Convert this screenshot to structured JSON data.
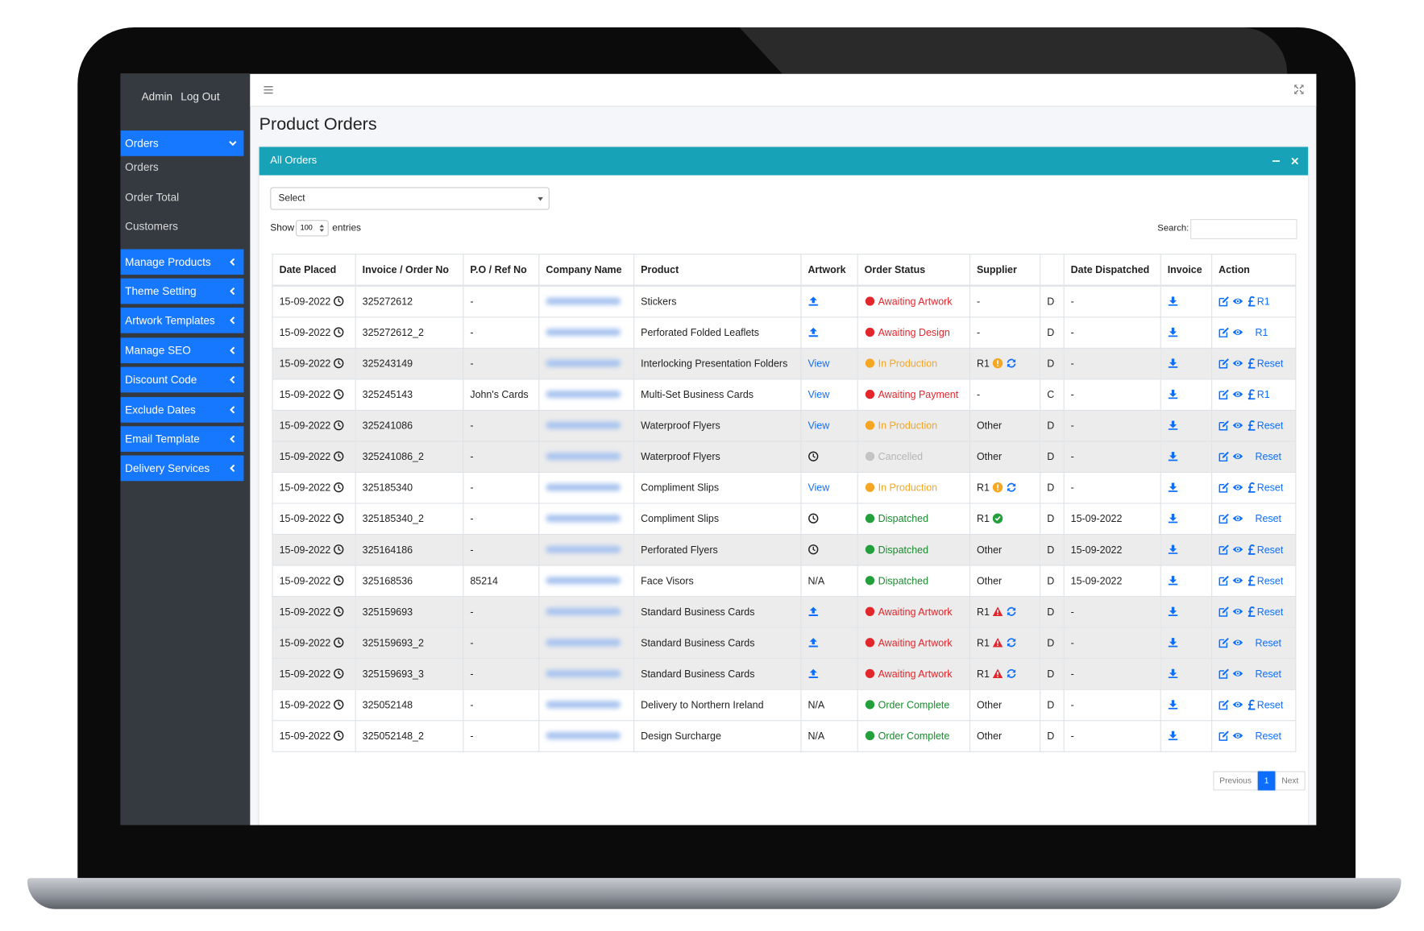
{
  "header": {
    "user": "Admin",
    "logout": "Log Out",
    "title": "Product Orders"
  },
  "sidebar": [
    {
      "label": "Orders",
      "expanded": true,
      "children": [
        "Orders",
        "Order Total",
        "Customers"
      ]
    },
    {
      "label": "Manage Products"
    },
    {
      "label": "Theme Setting"
    },
    {
      "label": "Artwork Templates"
    },
    {
      "label": "Manage SEO"
    },
    {
      "label": "Discount Code"
    },
    {
      "label": "Exclude Dates"
    },
    {
      "label": "Email Template"
    },
    {
      "label": "Delivery Services"
    }
  ],
  "panel": {
    "title": "All Orders",
    "select": "Select",
    "show": "Show",
    "entries_value": "100",
    "entries": "entries",
    "search": "Search:"
  },
  "table": {
    "columns": [
      "Date Placed",
      "Invoice / Order No",
      "P.O / Ref No",
      "Company Name",
      "Product",
      "Artwork",
      "Order Status",
      "Supplier",
      null,
      "Date Dispatched",
      "Invoice",
      "Action"
    ],
    "rows": [
      {
        "date": "15-09-2022",
        "invoice": "325272612",
        "po": "-",
        "product": "Stickers",
        "artwork_icon": "upload",
        "status": "Awaiting Artwork",
        "status_color": "#e3262c",
        "supplier": "-",
        "type": "D",
        "dispatched": "-",
        "action_pound": true,
        "action": "R1"
      },
      {
        "date": "15-09-2022",
        "invoice": "325272612_2",
        "po": "-",
        "product": "Perforated Folded Leaflets",
        "artwork_icon": "upload",
        "status": "Awaiting Design",
        "status_color": "#e3262c",
        "supplier": "-",
        "type": "D",
        "dispatched": "-",
        "action_pound": false,
        "action": "R1"
      },
      {
        "date": "15-09-2022",
        "invoice": "325243149",
        "po": "-",
        "product": "Interlocking Presentation Folders",
        "artwork": "View",
        "status": "In Production",
        "status_color": "#f5a623",
        "supplier": "R1",
        "supplier_icon": "info",
        "supplier_refresh": true,
        "type": "D",
        "dispatched": "-",
        "action_pound": true,
        "action": "Reset"
      },
      {
        "date": "15-09-2022",
        "invoice": "325245143",
        "po": "John's Cards",
        "product": "Multi-Set Business Cards",
        "artwork": "View",
        "status": "Awaiting Payment",
        "status_color": "#e3262c",
        "supplier": "-",
        "type": "C",
        "dispatched": "-",
        "action_pound": true,
        "action": "R1"
      },
      {
        "date": "15-09-2022",
        "invoice": "325241086",
        "po": "-",
        "product": "Waterproof Flyers",
        "artwork": "View",
        "status": "In Production",
        "status_color": "#f5a623",
        "supplier": "Other",
        "type": "D",
        "dispatched": "-",
        "action_pound": true,
        "action": "Reset"
      },
      {
        "date": "15-09-2022",
        "invoice": "325241086_2",
        "po": "-",
        "product": "Waterproof Flyers",
        "artwork_icon": "clock",
        "status": "Cancelled",
        "status_color": "#c4c4c4",
        "supplier": "Other",
        "type": "D",
        "dispatched": "-",
        "action_pound": false,
        "action": "Reset"
      },
      {
        "date": "15-09-2022",
        "invoice": "325185340",
        "po": "-",
        "product": "Compliment Slips",
        "artwork": "View",
        "status": "In Production",
        "status_color": "#f5a623",
        "supplier": "R1",
        "supplier_icon": "info",
        "supplier_refresh": true,
        "type": "D",
        "dispatched": "-",
        "action_pound": true,
        "action": "Reset"
      },
      {
        "date": "15-09-2022",
        "invoice": "325185340_2",
        "po": "-",
        "product": "Compliment Slips",
        "artwork_icon": "clock",
        "status": "Dispatched",
        "status_color": "#23a03c",
        "supplier": "R1",
        "supplier_icon": "check",
        "type": "D",
        "dispatched": "15-09-2022",
        "action_pound": false,
        "action": "Reset"
      },
      {
        "date": "15-09-2022",
        "invoice": "325164186",
        "po": "-",
        "product": "Perforated Flyers",
        "artwork_icon": "clock",
        "status": "Dispatched",
        "status_color": "#23a03c",
        "supplier": "Other",
        "type": "D",
        "dispatched": "15-09-2022",
        "action_pound": true,
        "action": "Reset"
      },
      {
        "date": "15-09-2022",
        "invoice": "325168536",
        "po": "85214",
        "product": "Face Visors",
        "artwork": "N/A",
        "status": "Dispatched",
        "status_color": "#23a03c",
        "supplier": "Other",
        "type": "D",
        "dispatched": "15-09-2022",
        "action_pound": true,
        "action": "Reset"
      },
      {
        "date": "15-09-2022",
        "invoice": "325159693",
        "po": "-",
        "product": "Standard Business Cards",
        "artwork_icon": "upload",
        "status": "Awaiting Artwork",
        "status_color": "#e3262c",
        "supplier": "R1",
        "supplier_icon": "warn",
        "supplier_refresh": true,
        "type": "D",
        "dispatched": "-",
        "action_pound": true,
        "action": "Reset"
      },
      {
        "date": "15-09-2022",
        "invoice": "325159693_2",
        "po": "-",
        "product": "Standard Business Cards",
        "artwork_icon": "upload",
        "status": "Awaiting Artwork",
        "status_color": "#e3262c",
        "supplier": "R1",
        "supplier_icon": "warn",
        "supplier_refresh": true,
        "type": "D",
        "dispatched": "-",
        "action_pound": false,
        "action": "Reset"
      },
      {
        "date": "15-09-2022",
        "invoice": "325159693_3",
        "po": "-",
        "product": "Standard Business Cards",
        "artwork_icon": "upload",
        "status": "Awaiting Artwork",
        "status_color": "#e3262c",
        "supplier": "R1",
        "supplier_icon": "warn",
        "supplier_refresh": true,
        "type": "D",
        "dispatched": "-",
        "action_pound": false,
        "action": "Reset"
      },
      {
        "date": "15-09-2022",
        "invoice": "325052148",
        "po": "-",
        "product": "Delivery to Northern Ireland",
        "artwork": "N/A",
        "status": "Order Complete",
        "status_color": "#23a03c",
        "supplier": "Other",
        "type": "D",
        "dispatched": "-",
        "action_pound": true,
        "action": "Reset"
      },
      {
        "date": "15-09-2022",
        "invoice": "325052148_2",
        "po": "-",
        "product": "Design Surcharge",
        "artwork": "N/A",
        "status": "Order Complete",
        "status_color": "#23a03c",
        "supplier": "Other",
        "type": "D",
        "dispatched": "-",
        "action_pound": false,
        "action": "Reset"
      }
    ]
  },
  "pagination": {
    "previous": "Previous",
    "page": "1",
    "next": "Next"
  }
}
